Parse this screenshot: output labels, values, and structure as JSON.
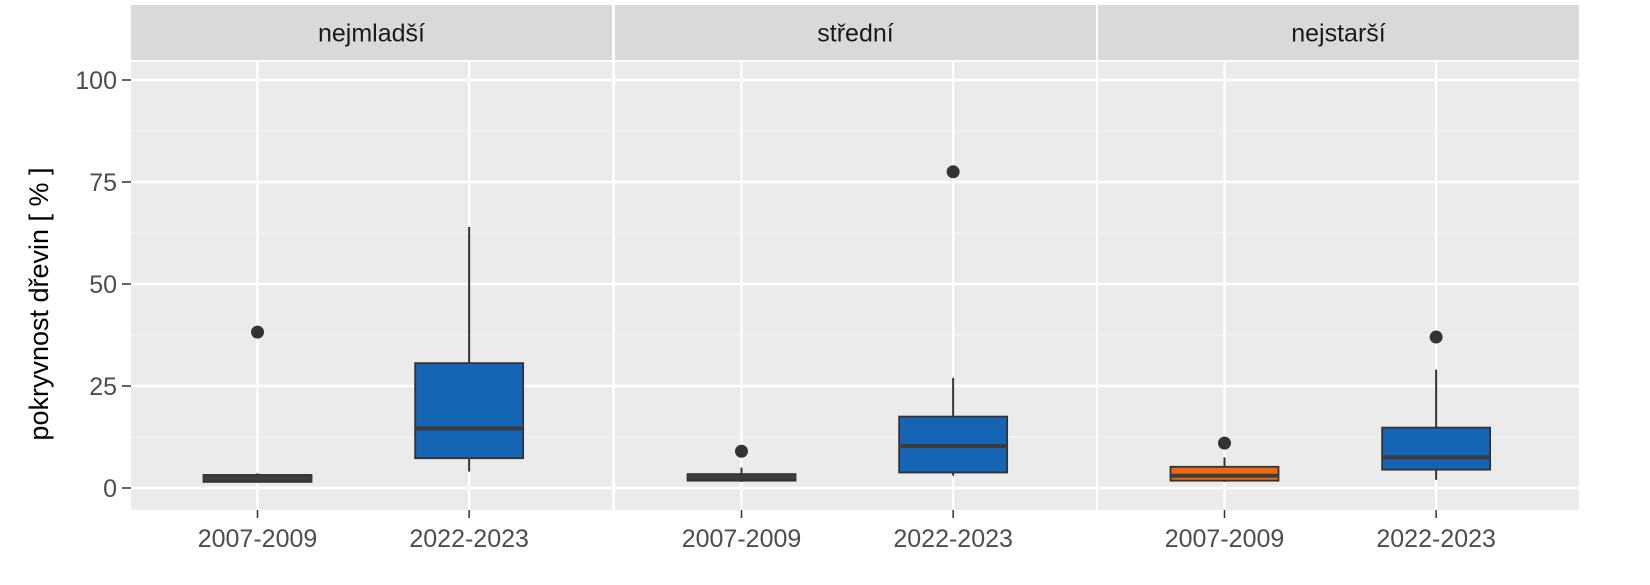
{
  "chart_data": {
    "type": "boxplot",
    "ylabel": "pokryvnost dřevin [ % ]",
    "ylim": [
      -5,
      105
    ],
    "yticks": [
      0,
      25,
      50,
      75,
      100
    ],
    "categories": [
      "2007-2009",
      "2022-2023"
    ],
    "grid": true,
    "colors": {
      "panel_bg": "#EBEBEB",
      "strip_bg": "#D9D9D9",
      "grid_major": "#FFFFFF",
      "grid_minor": "#F4F4F4",
      "box_blue": "#1565B4",
      "box_dark": "#3D3D3D",
      "box_orange": "#E86A10",
      "outline": "#333333",
      "tick_text": "#4D4D4D",
      "axis_title": "#000000"
    },
    "panels": [
      {
        "title": "nejmladší",
        "boxes": [
          {
            "category": "2007-2009",
            "whisker_low": 1.5,
            "q1": 1.5,
            "median": 2.5,
            "q3": 3.2,
            "whisker_high": 3.6,
            "outliers": [
              38.2
            ],
            "fill": "box_dark",
            "median_color": "box_dark"
          },
          {
            "category": "2022-2023",
            "whisker_low": 4.0,
            "q1": 7.3,
            "median": 14.6,
            "q3": 30.6,
            "whisker_high": 64.0,
            "outliers": [],
            "fill": "box_blue",
            "median_color": "box_dark"
          }
        ]
      },
      {
        "title": "střední",
        "boxes": [
          {
            "category": "2007-2009",
            "whisker_low": 1.5,
            "q1": 1.8,
            "median": 2.8,
            "q3": 3.4,
            "whisker_high": 5.0,
            "outliers": [
              9.0
            ],
            "fill": "box_dark",
            "median_color": "box_dark"
          },
          {
            "category": "2022-2023",
            "whisker_low": 3.0,
            "q1": 3.8,
            "median": 10.3,
            "q3": 17.5,
            "whisker_high": 27.0,
            "outliers": [
              77.5
            ],
            "fill": "box_blue",
            "median_color": "box_dark"
          }
        ]
      },
      {
        "title": "nejstarší",
        "boxes": [
          {
            "category": "2007-2009",
            "whisker_low": 1.5,
            "q1": 1.8,
            "median": 3.0,
            "q3": 5.2,
            "whisker_high": 7.5,
            "outliers": [
              11.0
            ],
            "fill": "box_orange",
            "median_color": "box_dark"
          },
          {
            "category": "2022-2023",
            "whisker_low": 2.0,
            "q1": 4.5,
            "median": 7.5,
            "q3": 14.8,
            "whisker_high": 29.0,
            "outliers": [
              37.0
            ],
            "fill": "box_blue",
            "median_color": "box_dark"
          }
        ]
      }
    ]
  }
}
